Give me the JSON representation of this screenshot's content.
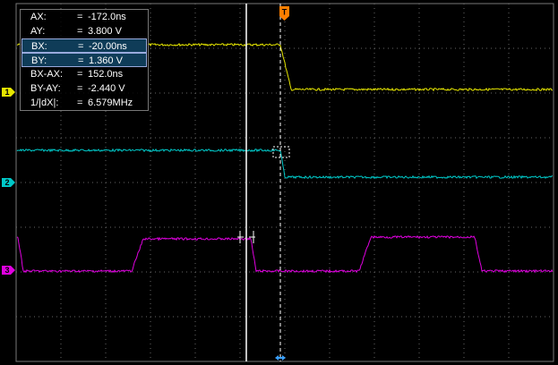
{
  "readout": {
    "rows": [
      {
        "label": "AX:",
        "eq": "=",
        "value": "-172.0ns",
        "highlight": false
      },
      {
        "label": "AY:",
        "eq": "=",
        "value": "3.800 V",
        "highlight": false
      },
      {
        "label": "BX:",
        "eq": "=",
        "value": "-20.00ns",
        "highlight": true
      },
      {
        "label": "BY:",
        "eq": "=",
        "value": "1.360 V",
        "highlight": true
      },
      {
        "label": "BX-AX:",
        "eq": "=",
        "value": "152.0ns",
        "highlight": false
      },
      {
        "label": "BY-AY:",
        "eq": "=",
        "value": "-2.440 V",
        "highlight": false
      },
      {
        "label": "1/|dX|:",
        "eq": "=",
        "value": "6.579MHz",
        "highlight": false
      }
    ]
  },
  "channels": [
    {
      "label": "1",
      "color": "#e6e600"
    },
    {
      "label": "2",
      "color": "#00c8c8"
    },
    {
      "label": "3",
      "color": "#e000e0"
    }
  ],
  "trigger": {
    "label": "T",
    "color": "#ff7f00"
  }
}
